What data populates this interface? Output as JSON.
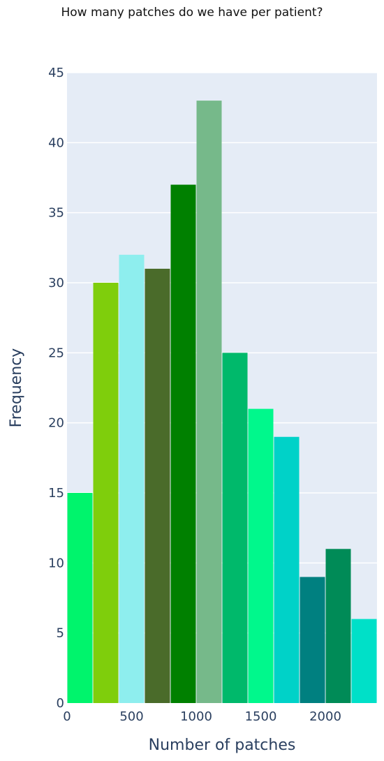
{
  "chart_data": {
    "type": "bar",
    "title": "How many patches do we have per patient?",
    "xlabel": "Number of patches",
    "ylabel": "Frequency",
    "bin_edges": [
      0,
      200,
      400,
      600,
      800,
      1000,
      1200,
      1400,
      1600,
      1800,
      2000,
      2200,
      2400
    ],
    "values": [
      15,
      30,
      32,
      31,
      37,
      43,
      25,
      21,
      19,
      9,
      11,
      6
    ],
    "bar_colors": [
      "#00f46c",
      "#7fce0c",
      "#8eeeee",
      "#4a6b2a",
      "#008000",
      "#76b98a",
      "#00b96b",
      "#00f88c",
      "#00d2c8",
      "#008080",
      "#008b57",
      "#00e0c8"
    ],
    "xlim": [
      0,
      2400
    ],
    "ylim": [
      0,
      45
    ],
    "x_ticks": [
      0,
      500,
      1000,
      1500,
      2000
    ],
    "y_ticks": [
      0,
      5,
      10,
      15,
      20,
      25,
      30,
      35,
      40,
      45
    ],
    "grid": true,
    "plot_background": "#e5ecf6",
    "axis_text_color": "#2a3f5f"
  }
}
